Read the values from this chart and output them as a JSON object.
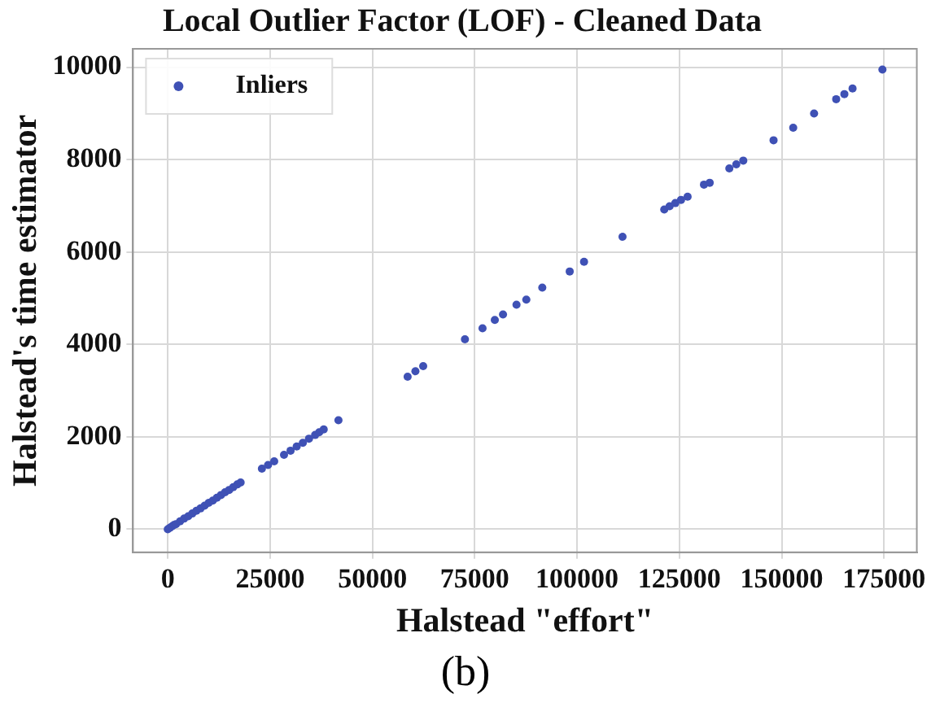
{
  "chart_data": {
    "type": "scatter",
    "title": "Local Outlier Factor (LOF) - Cleaned Data",
    "xlabel": "Halstead \"effort\"",
    "ylabel": "Halstead's time estimator",
    "annotations": [
      "(b)"
    ],
    "series": [
      {
        "name": "Inliers",
        "color": "#3f51b5",
        "x": [
          0,
          500,
          1000,
          1500,
          2000,
          3000,
          4000,
          5000,
          6000,
          7000,
          8000,
          9000,
          10000,
          11000,
          12000,
          13000,
          14000,
          15000,
          16000,
          17000,
          17800,
          23000,
          24500,
          26000,
          28400,
          30000,
          31500,
          33000,
          34500,
          36000,
          37000,
          38100,
          41700,
          58600,
          60500,
          62400,
          72600,
          76900,
          79900,
          81900,
          85200,
          87600,
          91500,
          98200,
          101700,
          111100,
          121300,
          122600,
          124000,
          125400,
          127000,
          131000,
          132400,
          137200,
          138900,
          140600,
          148000,
          152800,
          157900,
          163300,
          165300,
          167300,
          174600
        ],
        "values": [
          0,
          30,
          60,
          90,
          110,
          170,
          230,
          280,
          340,
          400,
          450,
          510,
          570,
          620,
          680,
          740,
          800,
          850,
          910,
          970,
          1010,
          1310,
          1390,
          1470,
          1610,
          1700,
          1790,
          1870,
          1960,
          2040,
          2100,
          2160,
          2360,
          3300,
          3420,
          3530,
          4110,
          4350,
          4530,
          4650,
          4860,
          4970,
          5230,
          5580,
          5790,
          6330,
          6920,
          6990,
          7060,
          7130,
          7200,
          7460,
          7500,
          7810,
          7900,
          7980,
          8420,
          8690,
          9000,
          9310,
          9420,
          9540,
          9950
        ]
      }
    ],
    "xlim": [
      -8500,
      183000
    ],
    "xticks": [
      0,
      25000,
      50000,
      75000,
      100000,
      125000,
      150000,
      175000
    ],
    "ylim": [
      -500,
      10400
    ],
    "yticks": [
      0,
      2000,
      4000,
      6000,
      8000,
      10000
    ],
    "grid": true,
    "legend": "top left",
    "marker": "circle"
  }
}
